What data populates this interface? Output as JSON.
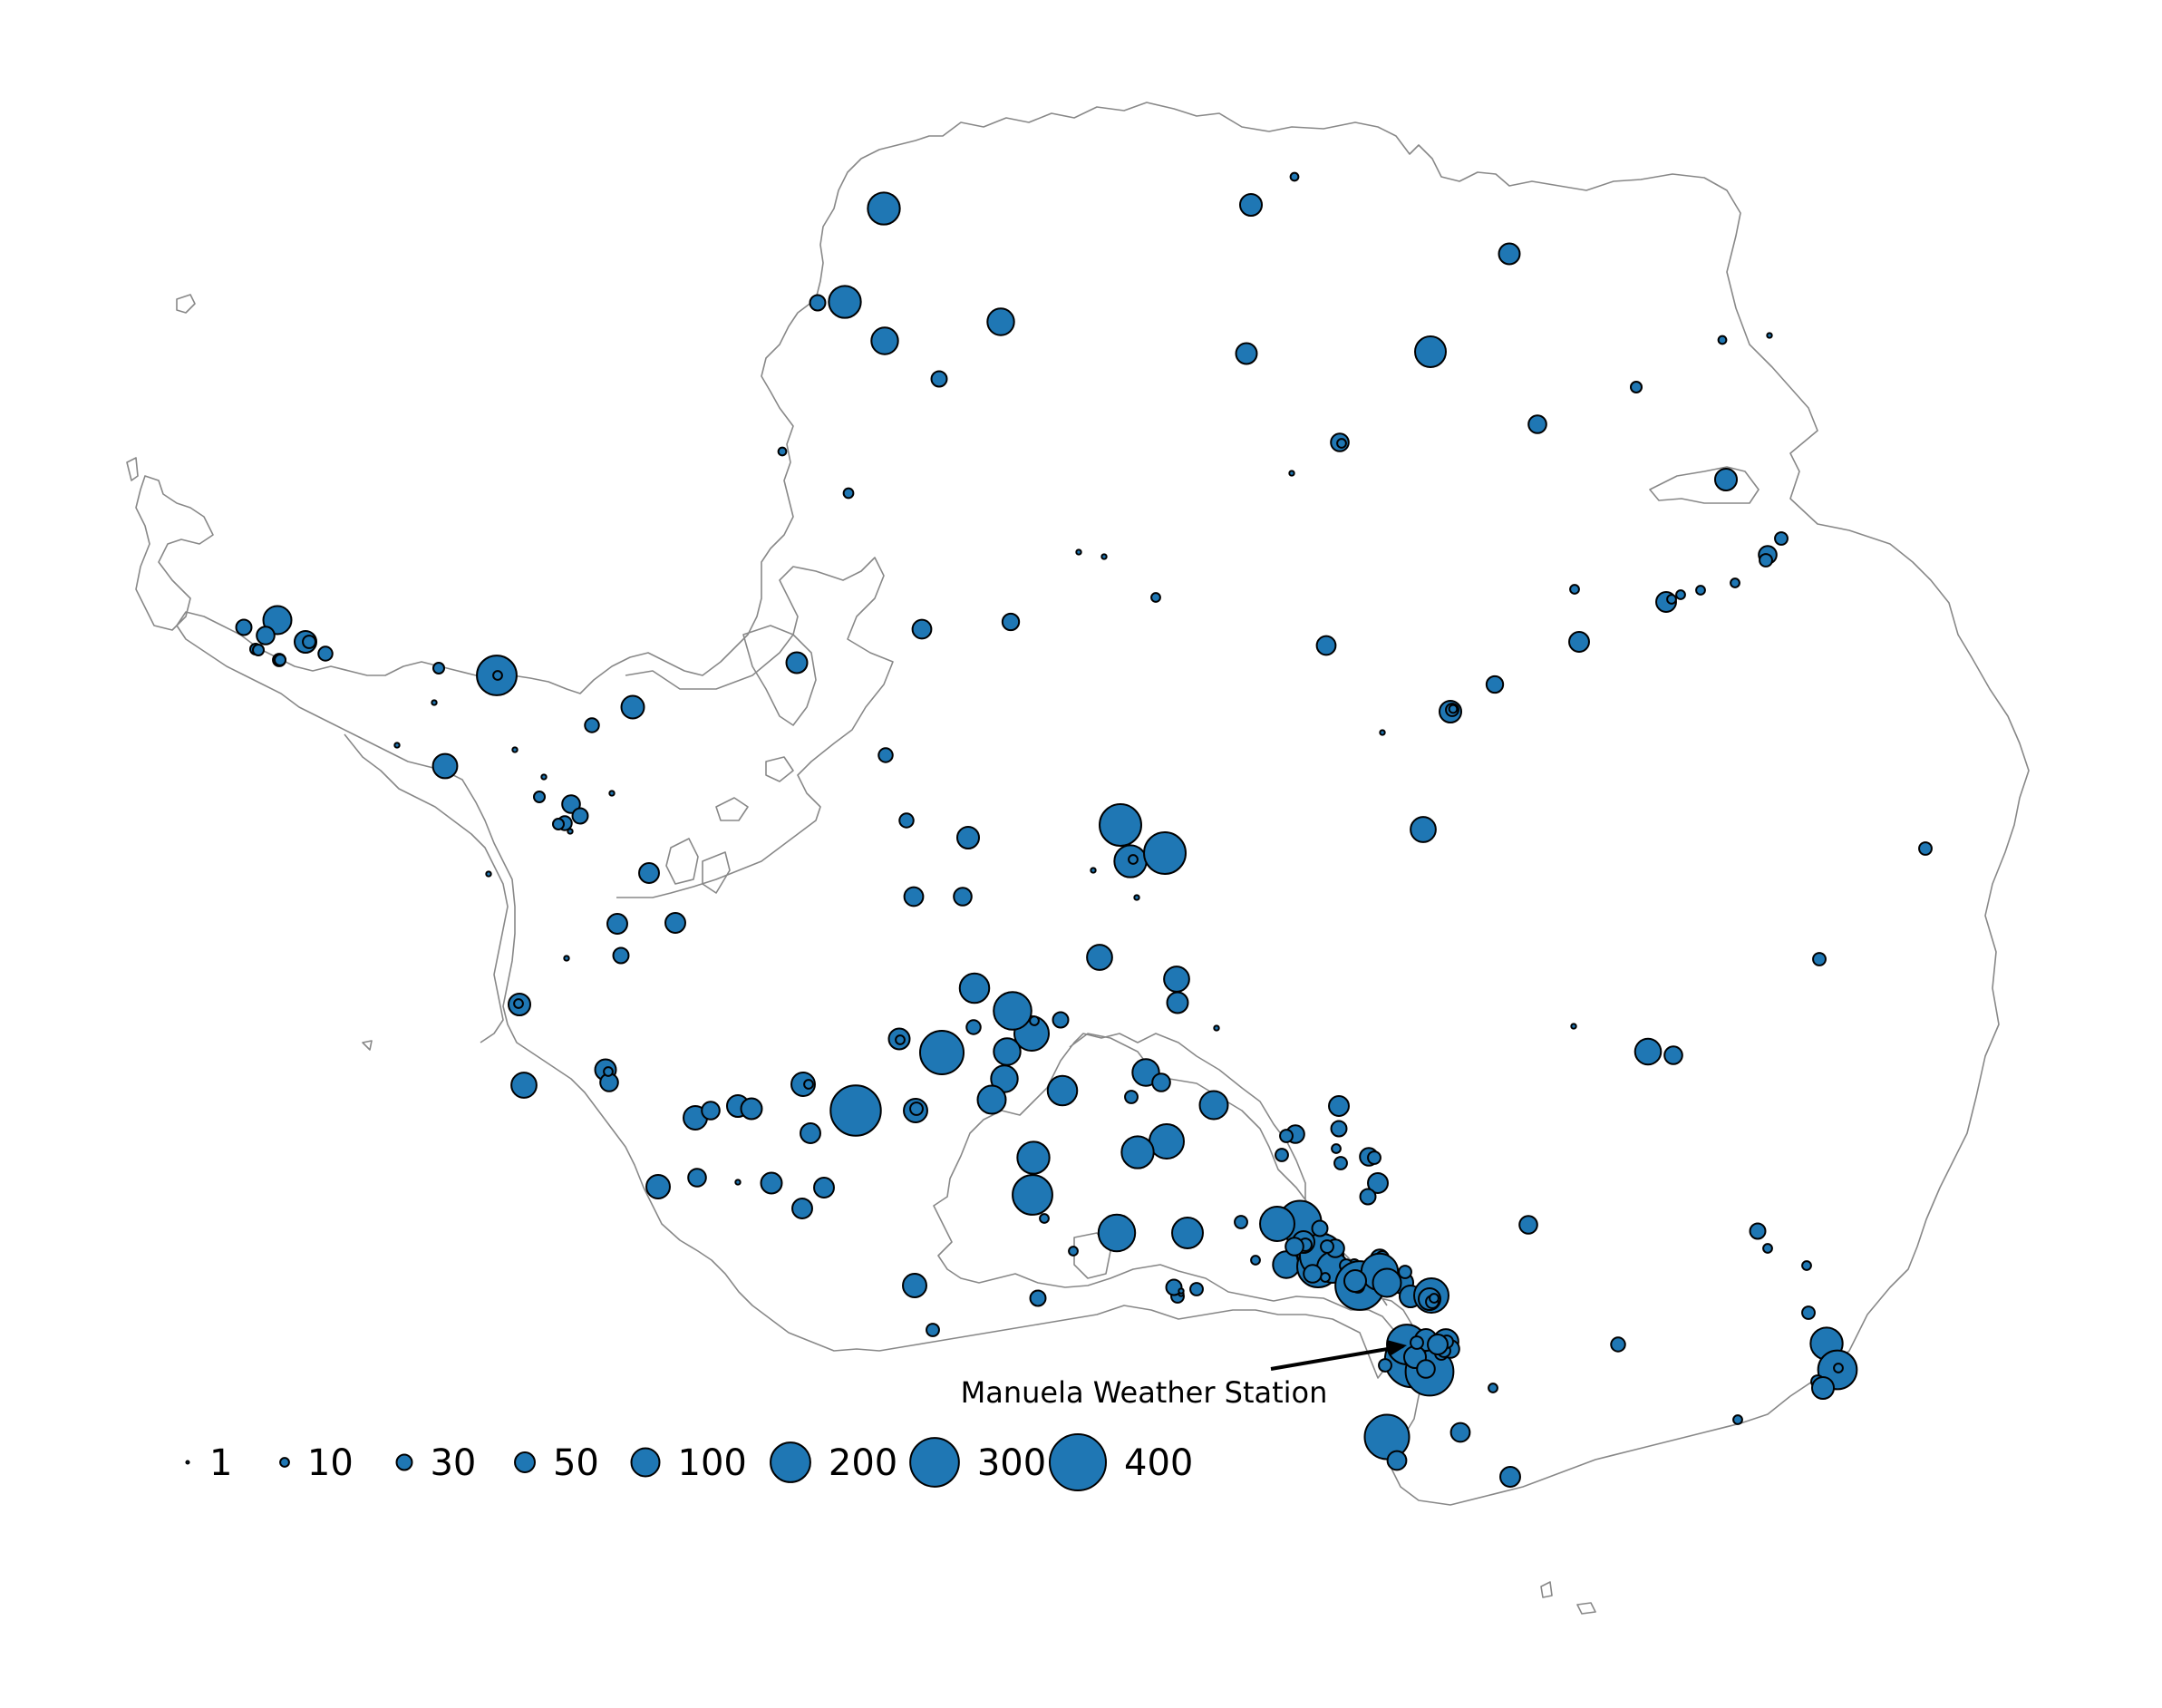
{
  "map": {
    "annotation": {
      "label": "Manuela Weather Station"
    },
    "marker_color": "#1f77b4",
    "marker_edge_color": "#000000",
    "coastline_color": "#888888",
    "legend": {
      "items": [
        {
          "label": "1",
          "value": 1
        },
        {
          "label": "10",
          "value": 10
        },
        {
          "label": "30",
          "value": 30
        },
        {
          "label": "50",
          "value": 50
        },
        {
          "label": "100",
          "value": 100
        },
        {
          "label": "200",
          "value": 200
        },
        {
          "label": "300",
          "value": 300
        },
        {
          "label": "400",
          "value": 400
        }
      ]
    }
  }
}
